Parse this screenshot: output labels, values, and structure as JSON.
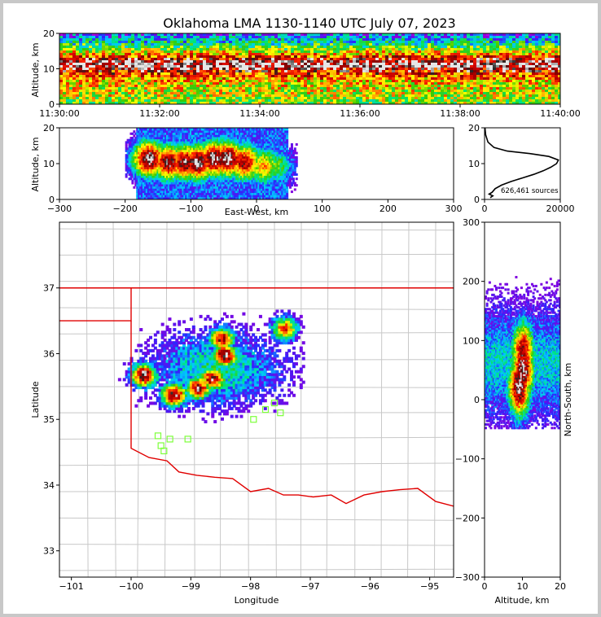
{
  "title": "Oklahoma LMA 1130-1140 UTC July 07, 2023",
  "chart_data": [
    {
      "type": "heatmap",
      "panel": "time-altitude",
      "ylabel": "Altitude, km",
      "xlabel": "",
      "yticks": [
        "0",
        "10",
        "20"
      ],
      "xticks": [
        "11:30:00",
        "11:32:00",
        "11:34:00",
        "11:36:00",
        "11:38:00",
        "11:40:00"
      ],
      "ylim": [
        0,
        20
      ],
      "profile_km": [
        1.0,
        2.5,
        4.0,
        6.0,
        8.0,
        9.5,
        11.0,
        12.5,
        14.0,
        16.0,
        18.0,
        19.5
      ],
      "profile_density": [
        0.55,
        0.6,
        0.6,
        0.65,
        0.75,
        0.85,
        1.0,
        0.9,
        0.7,
        0.5,
        0.35,
        0.25
      ]
    },
    {
      "type": "heatmap",
      "panel": "east-west-altitude",
      "xlabel": "East-West, km",
      "ylabel": "Altitude, km",
      "xticks": [
        "−300",
        "−200",
        "−100",
        "0",
        "100",
        "200",
        "300"
      ],
      "yticks": [
        "0",
        "10",
        "20"
      ],
      "xlim": [
        -300,
        300
      ],
      "ylim": [
        0,
        20
      ],
      "cells": [
        {
          "x": -165,
          "alt": 11,
          "v": 1.0
        },
        {
          "x": -135,
          "alt": 10,
          "v": 0.95
        },
        {
          "x": -110,
          "alt": 10,
          "v": 0.95
        },
        {
          "x": -90,
          "alt": 10,
          "v": 1.0
        },
        {
          "x": -65,
          "alt": 11,
          "v": 1.0
        },
        {
          "x": -45,
          "alt": 11,
          "v": 1.0
        },
        {
          "x": -20,
          "alt": 10,
          "v": 0.9
        },
        {
          "x": 10,
          "alt": 9,
          "v": 0.7
        },
        {
          "x": 30,
          "alt": 9,
          "v": 0.5
        }
      ]
    },
    {
      "type": "line",
      "panel": "altitude-histogram",
      "annotation": "626,461 sources",
      "xticks": [
        "0",
        "20000"
      ],
      "yticks": [
        "0",
        "10",
        "20"
      ],
      "xlim": [
        0,
        20000
      ],
      "ylim": [
        0,
        20
      ],
      "points": [
        {
          "count": 1500,
          "alt": 0.5
        },
        {
          "count": 2200,
          "alt": 1.0
        },
        {
          "count": 1200,
          "alt": 1.5
        },
        {
          "count": 2000,
          "alt": 2.0
        },
        {
          "count": 2800,
          "alt": 3.0
        },
        {
          "count": 4500,
          "alt": 4.0
        },
        {
          "count": 7000,
          "alt": 5.0
        },
        {
          "count": 10000,
          "alt": 6.0
        },
        {
          "count": 13000,
          "alt": 7.0
        },
        {
          "count": 15500,
          "alt": 8.0
        },
        {
          "count": 17500,
          "alt": 9.0
        },
        {
          "count": 19000,
          "alt": 10.0
        },
        {
          "count": 19500,
          "alt": 11.0
        },
        {
          "count": 17000,
          "alt": 12.0
        },
        {
          "count": 12000,
          "alt": 12.8
        },
        {
          "count": 6000,
          "alt": 13.5
        },
        {
          "count": 2500,
          "alt": 14.5
        },
        {
          "count": 900,
          "alt": 16.0
        },
        {
          "count": 300,
          "alt": 18.0
        },
        {
          "count": 100,
          "alt": 20.0
        }
      ]
    },
    {
      "type": "heatmap",
      "panel": "plan-view-map",
      "xlabel": "Longitude",
      "ylabel": "Latitude",
      "xticks": [
        "−101",
        "−100",
        "−99",
        "−98",
        "−97",
        "−96",
        "−95"
      ],
      "yticks": [
        "33",
        "34",
        "35",
        "36",
        "37"
      ],
      "xlim": [
        -101.2,
        -94.6
      ],
      "ylim": [
        32.6,
        38.0
      ],
      "cores": [
        {
          "lon": -99.8,
          "lat": 35.65,
          "v": 1.0
        },
        {
          "lon": -99.3,
          "lat": 35.35,
          "v": 1.0
        },
        {
          "lon": -98.9,
          "lat": 35.45,
          "v": 0.95
        },
        {
          "lon": -98.65,
          "lat": 35.6,
          "v": 0.95
        },
        {
          "lon": -98.45,
          "lat": 35.95,
          "v": 1.0
        },
        {
          "lon": -98.5,
          "lat": 36.2,
          "v": 0.9
        },
        {
          "lon": -97.45,
          "lat": 36.35,
          "v": 0.8
        }
      ],
      "stations": [
        {
          "lon": -97.6,
          "lat": 35.25
        },
        {
          "lon": -97.75,
          "lat": 35.15
        },
        {
          "lon": -97.95,
          "lat": 35.0
        },
        {
          "lon": -97.5,
          "lat": 35.1
        },
        {
          "lon": -99.55,
          "lat": 34.75
        },
        {
          "lon": -99.05,
          "lat": 34.7
        },
        {
          "lon": -99.35,
          "lat": 34.7
        },
        {
          "lon": -99.5,
          "lat": 34.6
        },
        {
          "lon": -99.45,
          "lat": 34.52
        }
      ]
    },
    {
      "type": "heatmap",
      "panel": "altitude-north-south",
      "xlabel": "Altitude, km",
      "ylabel": "North-South, km",
      "xticks": [
        "0",
        "10",
        "20"
      ],
      "yticks": [
        "−300",
        "−200",
        "−100",
        "0",
        "100",
        "200",
        "300"
      ],
      "xlim": [
        0,
        20
      ],
      "ylim": [
        -300,
        300
      ],
      "cells": [
        {
          "alt": 9,
          "y": 20,
          "v": 1.0
        },
        {
          "alt": 10,
          "y": 50,
          "v": 1.0
        },
        {
          "alt": 10,
          "y": 80,
          "v": 0.9
        }
      ]
    }
  ]
}
